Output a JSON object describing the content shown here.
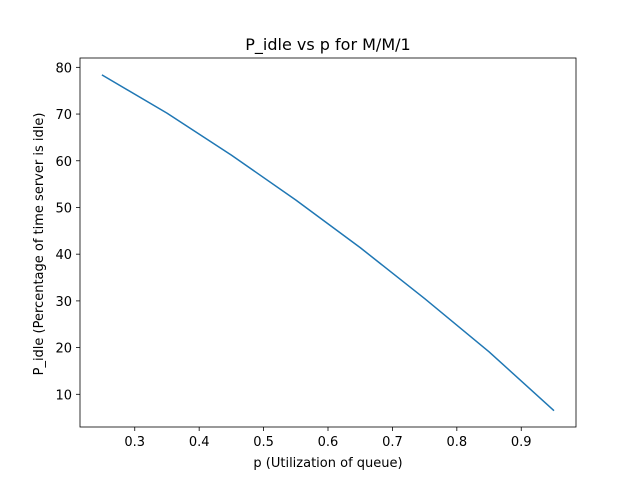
{
  "chart_data": {
    "type": "line",
    "title": "P_idle vs p for M/M/1",
    "xlabel": "p (Utilization of queue)",
    "ylabel": "P_idle (Percentage of time server is idle)",
    "xlim": [
      0.215,
      0.985
    ],
    "ylim": [
      3.0,
      82.0
    ],
    "xticks": [
      "0.3",
      "0.4",
      "0.5",
      "0.6",
      "0.7",
      "0.8",
      "0.9"
    ],
    "yticks": [
      "10",
      "20",
      "30",
      "40",
      "50",
      "60",
      "70",
      "80"
    ],
    "grid": false,
    "legend": "none",
    "series": [
      {
        "color": "#1f77b4",
        "x": [
          0.25,
          0.35,
          0.45,
          0.55,
          0.65,
          0.75,
          0.85,
          0.95
        ],
        "y": [
          78.3,
          70.2,
          61.2,
          51.6,
          41.4,
          30.5,
          19.1,
          6.6
        ]
      }
    ]
  }
}
